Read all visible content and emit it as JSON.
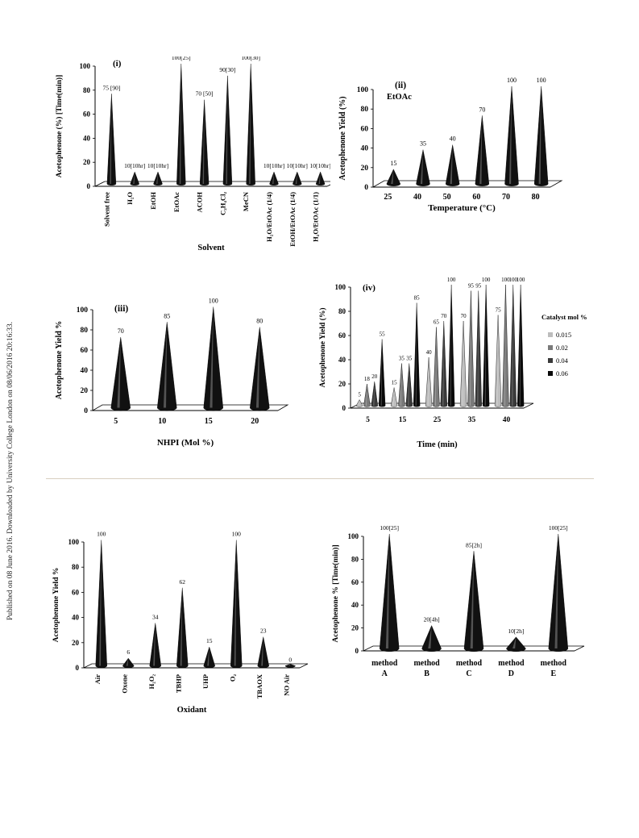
{
  "side_note": "Published on 08 June 2016. Downloaded by University College London on 08/06/2016 20:16:33.",
  "chart_data": [
    {
      "type": "bar",
      "panel": "(i)",
      "mark": "cone",
      "title": "",
      "ylabel": "Acetophenone (%) [Time(min)]",
      "xlabel": "Solvent",
      "ylim": [
        0,
        100
      ],
      "yticks": [
        0,
        20,
        40,
        60,
        80,
        100
      ],
      "categories": [
        "Solvent free",
        "H₂O",
        "EtOH",
        "EtOAc",
        "ACOH",
        "C₂H₄Cl₂",
        "MeCN",
        "H₂O/EtOAc (1/4)",
        "EtOH/EtOAc (1/4)",
        "H₂O/EtOAc (1/1)"
      ],
      "values": [
        75,
        10,
        10,
        100,
        70,
        90,
        100,
        10,
        10,
        10
      ],
      "labels": [
        "75 [90]",
        "10[10hr]",
        "10[10hr]",
        "100[25]",
        "70 [50]",
        "90[30]",
        "100[30]",
        "10[10hr]",
        "10[10hr]",
        "10[10hr]"
      ],
      "grid": false,
      "legend": "none"
    },
    {
      "type": "bar",
      "panel": "(ii)",
      "mark": "cone",
      "title": "",
      "annotation": "EtOAc",
      "ylabel": "Acetophenone Yield (%)",
      "xlabel": "Temperature (°C)",
      "ylim": [
        0,
        100
      ],
      "yticks": [
        0,
        20,
        40,
        60,
        80,
        100
      ],
      "categories": [
        "25",
        "40",
        "50",
        "60",
        "70",
        "80"
      ],
      "values": [
        15,
        35,
        40,
        70,
        100,
        100
      ],
      "labels": [
        "15",
        "35",
        "40",
        "70",
        "100",
        "100"
      ],
      "grid": false,
      "legend": "none"
    },
    {
      "type": "bar",
      "panel": "(iii)",
      "mark": "cone",
      "title": "",
      "ylabel": "Acetophenone Yield %",
      "xlabel": "NHPI (Mol %)",
      "ylim": [
        0,
        100
      ],
      "yticks": [
        0,
        20,
        40,
        60,
        80,
        100
      ],
      "categories": [
        "5",
        "10",
        "15",
        "20"
      ],
      "values": [
        70,
        85,
        100,
        80
      ],
      "labels": [
        "70",
        "85",
        "100",
        "80"
      ],
      "grid": false,
      "legend": "none"
    },
    {
      "type": "bar",
      "panel": "(iv)",
      "mark": "cone",
      "title": "",
      "ylabel": "Acetophenone Yield (%)",
      "xlabel": "Time (min)",
      "ylim": [
        0,
        100
      ],
      "yticks": [
        0,
        20,
        40,
        60,
        80,
        100
      ],
      "categories": [
        "5",
        "15",
        "25",
        "35",
        "40"
      ],
      "legend_title": "Catalyst mol %",
      "legend": "right",
      "grid": false,
      "series": [
        {
          "name": "0.015",
          "color": "#bdbdbd",
          "values": [
            5,
            15,
            40,
            70,
            75
          ],
          "labels": [
            "5",
            "15",
            "40",
            "70",
            "75"
          ]
        },
        {
          "name": "0.02",
          "color": "#7a7a7a",
          "values": [
            18,
            35,
            65,
            95,
            100
          ],
          "labels": [
            "18",
            "35",
            "65",
            "95",
            "100"
          ]
        },
        {
          "name": "0.04",
          "color": "#3a3a3a",
          "values": [
            20,
            35,
            70,
            95,
            100
          ],
          "labels": [
            "20",
            "35",
            "70",
            "95",
            "100"
          ]
        },
        {
          "name": "0.06",
          "color": "#0a0a0a",
          "values": [
            55,
            85,
            100,
            100,
            100
          ],
          "labels": [
            "55",
            "85",
            "100",
            "100",
            "100"
          ]
        }
      ]
    },
    {
      "type": "bar",
      "panel": "",
      "mark": "cone",
      "title": "",
      "ylabel": "Acetophenone Yield %",
      "xlabel": "Oxidant",
      "ylim": [
        0,
        100
      ],
      "yticks": [
        0,
        20,
        40,
        60,
        80,
        100
      ],
      "categories": [
        "Air",
        "Oxone",
        "H₂O₂",
        "TBHP",
        "UHP",
        "O₂",
        "TBAOX",
        "NO Air"
      ],
      "values": [
        100,
        6,
        34,
        62,
        15,
        100,
        23,
        0
      ],
      "labels": [
        "100",
        "6",
        "34",
        "62",
        "15",
        "100",
        "23",
        "0"
      ],
      "grid": false,
      "legend": "none"
    },
    {
      "type": "bar",
      "panel": "",
      "mark": "cone",
      "title": "",
      "ylabel": "Acetophenone % [Time(min)]",
      "xlabel": "",
      "ylim": [
        0,
        100
      ],
      "yticks": [
        0,
        20,
        40,
        60,
        80,
        100
      ],
      "categories": [
        "method A",
        "method B",
        "method C",
        "method D",
        "method E"
      ],
      "values": [
        100,
        20,
        85,
        10,
        100
      ],
      "labels": [
        "100[25]",
        "20[4h]",
        "85[2h]",
        "10[2h]",
        "100[25]"
      ],
      "grid": false,
      "legend": "none"
    }
  ]
}
